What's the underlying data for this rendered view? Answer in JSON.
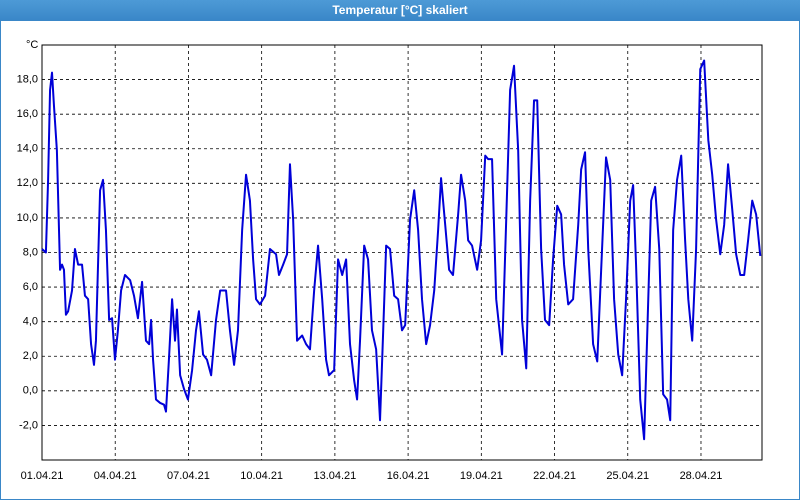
{
  "chart_data": {
    "type": "line",
    "title": "Temperatur [°C] skaliert",
    "y_unit": "°C",
    "color": "#0000d8",
    "grid": true,
    "xlim": [
      0,
      29.5
    ],
    "ylim": [
      -4,
      20
    ],
    "xticks": [
      {
        "value": 0,
        "label": "01.04.21"
      },
      {
        "value": 3,
        "label": "04.04.21"
      },
      {
        "value": 6,
        "label": "07.04.21"
      },
      {
        "value": 9,
        "label": "10.04.21"
      },
      {
        "value": 12,
        "label": "13.04.21"
      },
      {
        "value": 15,
        "label": "16.04.21"
      },
      {
        "value": 18,
        "label": "19.04.21"
      },
      {
        "value": 21,
        "label": "22.04.21"
      },
      {
        "value": 24,
        "label": "25.04.21"
      },
      {
        "value": 27,
        "label": "28.04.21"
      }
    ],
    "yticks": [
      {
        "value": -2,
        "label": "-2,0"
      },
      {
        "value": 0,
        "label": "0,0"
      },
      {
        "value": 2,
        "label": "2,0"
      },
      {
        "value": 4,
        "label": "4,0"
      },
      {
        "value": 6,
        "label": "6,0"
      },
      {
        "value": 8,
        "label": "8,0"
      },
      {
        "value": 10,
        "label": "10,0"
      },
      {
        "value": 12,
        "label": "12,0"
      },
      {
        "value": 14,
        "label": "14,0"
      },
      {
        "value": 16,
        "label": "16,0"
      },
      {
        "value": 18,
        "label": "18,0"
      }
    ],
    "x": [
      0,
      0.16,
      0.25,
      0.33,
      0.41,
      0.49,
      0.61,
      0.74,
      0.82,
      0.9,
      0.98,
      1.07,
      1.23,
      1.35,
      1.48,
      1.64,
      1.76,
      1.89,
      2.01,
      2.13,
      2.21,
      2.38,
      2.5,
      2.62,
      2.75,
      2.87,
      2.99,
      3.11,
      3.24,
      3.4,
      3.61,
      3.77,
      3.93,
      4.1,
      4.26,
      4.39,
      4.47,
      4.55,
      4.67,
      4.84,
      5.0,
      5.08,
      5.2,
      5.33,
      5.45,
      5.53,
      5.66,
      5.82,
      5.98,
      6.15,
      6.31,
      6.43,
      6.6,
      6.76,
      6.93,
      7.13,
      7.3,
      7.54,
      7.7,
      7.87,
      8.03,
      8.2,
      8.36,
      8.52,
      8.65,
      8.77,
      8.93,
      9.14,
      9.34,
      9.59,
      9.71,
      9.88,
      10.04,
      10.16,
      10.29,
      10.45,
      10.66,
      10.82,
      10.98,
      11.15,
      11.31,
      11.48,
      11.64,
      11.76,
      11.97,
      12.13,
      12.3,
      12.46,
      12.62,
      12.79,
      12.91,
      13.03,
      13.2,
      13.36,
      13.52,
      13.69,
      13.85,
      13.98,
      14.1,
      14.26,
      14.43,
      14.59,
      14.75,
      14.88,
      15.08,
      15.25,
      15.41,
      15.57,
      15.74,
      15.9,
      16.07,
      16.23,
      16.35,
      16.52,
      16.68,
      16.84,
      17.05,
      17.17,
      17.34,
      17.46,
      17.62,
      17.83,
      17.99,
      18.16,
      18.28,
      18.44,
      18.61,
      18.85,
      19.02,
      19.18,
      19.34,
      19.51,
      19.67,
      19.84,
      20.0,
      20.16,
      20.29,
      20.45,
      20.61,
      20.78,
      20.94,
      21.11,
      21.27,
      21.39,
      21.56,
      21.76,
      21.97,
      22.09,
      22.25,
      22.38,
      22.58,
      22.75,
      22.91,
      23.11,
      23.28,
      23.44,
      23.61,
      23.77,
      23.93,
      24.1,
      24.22,
      24.34,
      24.51,
      24.67,
      24.84,
      24.96,
      25.12,
      25.29,
      25.45,
      25.61,
      25.74,
      25.86,
      26.02,
      26.19,
      26.35,
      26.48,
      26.64,
      26.8,
      26.97,
      27.13,
      27.3,
      27.46,
      27.62,
      27.79,
      27.95,
      28.11,
      28.28,
      28.44,
      28.61,
      28.77,
      28.93,
      29.1,
      29.26,
      29.43
    ],
    "values": [
      8.2,
      8.0,
      12.2,
      17.4,
      18.4,
      16.5,
      13.9,
      7.0,
      7.3,
      7.0,
      4.4,
      4.6,
      5.8,
      8.2,
      7.3,
      7.3,
      5.5,
      5.3,
      2.7,
      1.5,
      2.9,
      11.6,
      12.2,
      9.3,
      4.1,
      4.2,
      1.8,
      3.5,
      5.8,
      6.7,
      6.4,
      5.5,
      4.2,
      6.3,
      2.9,
      2.7,
      4.1,
      1.8,
      -0.5,
      -0.7,
      -0.8,
      -1.2,
      1.8,
      5.3,
      2.9,
      4.7,
      0.9,
      0.1,
      -0.5,
      1.2,
      3.5,
      4.6,
      2.1,
      1.8,
      0.9,
      4.1,
      5.8,
      5.8,
      3.5,
      1.5,
      3.5,
      9.3,
      12.5,
      11.0,
      7.6,
      5.3,
      5.0,
      5.5,
      8.2,
      7.9,
      6.7,
      7.3,
      7.9,
      13.1,
      9.9,
      2.9,
      3.2,
      2.7,
      2.4,
      5.8,
      8.4,
      5.3,
      1.8,
      0.9,
      1.2,
      7.6,
      6.7,
      7.6,
      2.7,
      0.6,
      -0.5,
      2.9,
      8.4,
      7.6,
      3.5,
      2.4,
      -1.7,
      3.5,
      8.4,
      8.2,
      5.5,
      5.3,
      3.5,
      3.8,
      9.9,
      11.6,
      9.3,
      5.3,
      2.7,
      3.8,
      5.8,
      9.3,
      12.3,
      9.6,
      7.0,
      6.7,
      10.2,
      12.5,
      11.0,
      8.7,
      8.4,
      7.0,
      8.7,
      13.6,
      13.4,
      13.4,
      5.3,
      2.1,
      9.9,
      17.4,
      18.8,
      13.9,
      4.1,
      1.3,
      11.0,
      16.8,
      16.8,
      8.2,
      4.1,
      3.8,
      7.6,
      10.7,
      10.2,
      7.3,
      5.0,
      5.3,
      9.6,
      12.8,
      13.8,
      8.2,
      2.7,
      1.7,
      7.0,
      13.5,
      12.2,
      5.3,
      2.1,
      0.9,
      5.3,
      11.0,
      11.9,
      7.3,
      -0.5,
      -2.8,
      5.3,
      11.0,
      11.8,
      8.2,
      -0.2,
      -0.5,
      -1.7,
      9.3,
      12.2,
      13.6,
      8.7,
      5.3,
      2.9,
      8.2,
      18.6,
      19.1,
      14.5,
      12.5,
      9.9,
      7.9,
      9.6,
      13.1,
      10.5,
      7.9,
      6.7,
      6.7,
      8.7,
      11.0,
      10.2,
      7.8
    ]
  }
}
